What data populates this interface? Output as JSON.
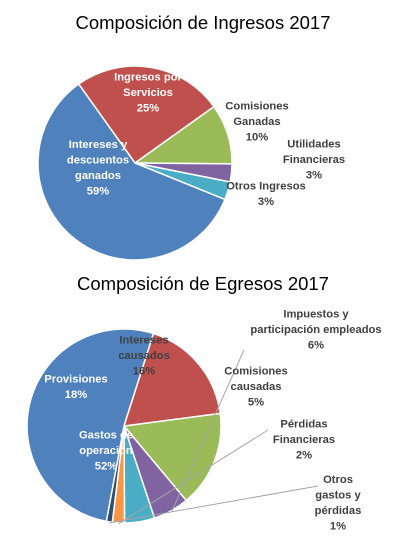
{
  "chart_data": [
    {
      "type": "pie",
      "title": "Composición de Ingresos 2017",
      "slices": [
        {
          "name_lines": [
            "Ingresos por",
            "Servicios"
          ],
          "value_label": "25%",
          "value": 25,
          "color": "#C0504D",
          "label_color": "#FFFFFF"
        },
        {
          "name_lines": [
            "Comisiones",
            "Ganadas"
          ],
          "value_label": "10%",
          "value": 10,
          "color": "#9BBB59",
          "label_color": "#404040"
        },
        {
          "name_lines": [
            "Utilidades",
            "Financieras"
          ],
          "value_label": "3%",
          "value": 3,
          "color": "#8064A2",
          "label_color": "#404040"
        },
        {
          "name_lines": [
            "Otros Ingresos"
          ],
          "value_label": "3%",
          "value": 3,
          "color": "#4BACC6",
          "label_color": "#404040"
        },
        {
          "name_lines": [
            "Intereses y",
            "descuentos",
            "ganados"
          ],
          "value_label": "59%",
          "value": 59,
          "color": "#4F81BD",
          "label_color": "#FFFFFF"
        }
      ]
    },
    {
      "type": "pie",
      "title": "Composición de Egresos 2017",
      "slices": [
        {
          "name_lines": [
            "Intereses",
            "causados"
          ],
          "value_label": "16%",
          "value": 16,
          "color": "#9BBB59",
          "label_color": "#404040"
        },
        {
          "name_lines": [
            "Impuestos y",
            "participación  empleados"
          ],
          "value_label": "6%",
          "value": 6,
          "color": "#8064A2",
          "label_color": "#404040"
        },
        {
          "name_lines": [
            "Comisiones",
            "causadas"
          ],
          "value_label": "5%",
          "value": 5,
          "color": "#4BACC6",
          "label_color": "#404040"
        },
        {
          "name_lines": [
            "Pérdidas",
            "Financieras"
          ],
          "value_label": "2%",
          "value": 2,
          "color": "#F79646",
          "label_color": "#404040"
        },
        {
          "name_lines": [
            "Otros",
            "gastos y",
            "pérdidas"
          ],
          "value_label": "1%",
          "value": 1,
          "color": "#2C4D75",
          "label_color": "#404040"
        },
        {
          "name_lines": [
            "Gastos de",
            "operación"
          ],
          "value_label": "52%",
          "value": 52,
          "color": "#4F81BD",
          "label_color": "#FFFFFF"
        },
        {
          "name_lines": [
            "Provisiones"
          ],
          "value_label": "18%",
          "value": 18,
          "color": "#C0504D",
          "label_color": "#FFFFFF"
        }
      ]
    }
  ]
}
